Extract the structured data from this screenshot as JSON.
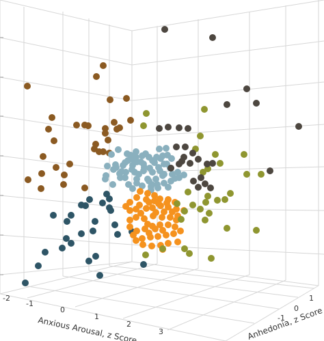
{
  "chart_data": {
    "type": "scatter",
    "title": "",
    "xlabel": "Anxious Arousal, z Score",
    "ylabel": "Anhedonia, z Score",
    "x_ticks": [
      "-2",
      "-1",
      "0",
      "1",
      "2",
      "3"
    ],
    "y_ticks": [
      "1",
      "0",
      "-1"
    ],
    "colors": {
      "brown": "#8b5a22",
      "teal": "#2e5566",
      "lightblue": "#8ab0be",
      "orange": "#f5921e",
      "olive": "#8f9630",
      "darkgray": "#4d4740"
    },
    "series": [
      {
        "color": "brown",
        "points": [
          [
            40,
            126
          ],
          [
            151,
            96
          ],
          [
            141,
            112
          ],
          [
            161,
            146
          ],
          [
            185,
            144
          ],
          [
            76,
            172
          ],
          [
            71,
            189
          ],
          [
            112,
            183
          ],
          [
            129,
            184
          ],
          [
            124,
            183
          ],
          [
            167,
            179
          ],
          [
            191,
            176
          ],
          [
            154,
            188
          ],
          [
            171,
            189
          ],
          [
            175,
            187
          ],
          [
            154,
            195
          ],
          [
            158,
            205
          ],
          [
            140,
            211
          ],
          [
            79,
            206
          ],
          [
            138,
            218
          ],
          [
            145,
            222
          ],
          [
            151,
            222
          ],
          [
            160,
            224
          ],
          [
            102,
            240
          ],
          [
            63,
            229
          ],
          [
            82,
            245
          ],
          [
            61,
            254
          ],
          [
            94,
            256
          ],
          [
            41,
            263
          ],
          [
            93,
            270
          ],
          [
            124,
            275
          ],
          [
            60,
            276
          ]
        ]
      },
      {
        "color": "teal",
        "points": [
          [
            150,
            297
          ],
          [
            156,
            284
          ],
          [
            160,
            291
          ],
          [
            131,
            292
          ],
          [
            125,
            301
          ],
          [
            119,
            300
          ],
          [
            78,
            315
          ],
          [
            104,
            315
          ],
          [
            98,
            324
          ],
          [
            119,
            342
          ],
          [
            139,
            324
          ],
          [
            136,
            338
          ],
          [
            172,
            343
          ],
          [
            168,
            329
          ],
          [
            162,
            308
          ],
          [
            160,
            304
          ],
          [
            97,
            349
          ],
          [
            56,
            389
          ],
          [
            104,
            356
          ],
          [
            91,
            363
          ],
          [
            193,
            339
          ],
          [
            140,
            375
          ],
          [
            130,
            382
          ],
          [
            66,
            369
          ],
          [
            146,
            403
          ],
          [
            37,
            414
          ],
          [
            210,
            387
          ]
        ]
      },
      {
        "color": "lightblue",
        "points": [
          [
            173,
            219
          ],
          [
            186,
            225
          ],
          [
            191,
            227
          ],
          [
            196,
            235
          ],
          [
            169,
            241
          ],
          [
            157,
            243
          ],
          [
            180,
            242
          ],
          [
            194,
            242
          ],
          [
            210,
            240
          ],
          [
            223,
            235
          ],
          [
            229,
            230
          ],
          [
            238,
            228
          ],
          [
            245,
            227
          ],
          [
            240,
            240
          ],
          [
            232,
            245
          ],
          [
            219,
            246
          ],
          [
            210,
            250
          ],
          [
            197,
            252
          ],
          [
            184,
            252
          ],
          [
            175,
            254
          ],
          [
            166,
            248
          ],
          [
            170,
            245
          ],
          [
            183,
            260
          ],
          [
            200,
            262
          ],
          [
            216,
            262
          ],
          [
            228,
            262
          ],
          [
            240,
            268
          ],
          [
            222,
            270
          ],
          [
            208,
            272
          ],
          [
            200,
            268
          ],
          [
            194,
            276
          ],
          [
            221,
            278
          ],
          [
            231,
            275
          ],
          [
            252,
            255
          ],
          [
            260,
            252
          ],
          [
            269,
            256
          ],
          [
            250,
            265
          ],
          [
            226,
            238
          ],
          [
            208,
            228
          ],
          [
            199,
            222
          ],
          [
            187,
            235
          ],
          [
            178,
            251
          ],
          [
            165,
            270
          ],
          [
            154,
            262
          ],
          [
            193,
            229
          ],
          [
            200,
            237
          ],
          [
            211,
            245
          ],
          [
            223,
            252
          ],
          [
            234,
            250
          ],
          [
            240,
            255
          ],
          [
            256,
            261
          ],
          [
            218,
            265
          ],
          [
            246,
            274
          ],
          [
            230,
            270
          ],
          [
            206,
            237
          ],
          [
            199,
            230
          ],
          [
            176,
            260
          ],
          [
            188,
            270
          ],
          [
            218,
            230
          ],
          [
            213,
            225
          ],
          [
            235,
            232
          ],
          [
            249,
            246
          ],
          [
            244,
            240
          ],
          [
            238,
            257
          ],
          [
            221,
            273
          ],
          [
            203,
            255
          ],
          [
            193,
            248
          ],
          [
            183,
            238
          ],
          [
            163,
            226
          ],
          [
            155,
            257
          ],
          [
            243,
            217
          ],
          [
            233,
            218
          ],
          [
            251,
            232
          ],
          [
            262,
            260
          ]
        ]
      },
      {
        "color": "orange",
        "points": [
          [
            205,
            280
          ],
          [
            216,
            283
          ],
          [
            226,
            286
          ],
          [
            234,
            291
          ],
          [
            246,
            292
          ],
          [
            256,
            296
          ],
          [
            226,
            294
          ],
          [
            214,
            292
          ],
          [
            200,
            289
          ],
          [
            190,
            296
          ],
          [
            184,
            302
          ],
          [
            190,
            308
          ],
          [
            199,
            306
          ],
          [
            206,
            312
          ],
          [
            214,
            305
          ],
          [
            223,
            304
          ],
          [
            235,
            301
          ],
          [
            246,
            303
          ],
          [
            258,
            306
          ],
          [
            269,
            308
          ],
          [
            260,
            316
          ],
          [
            249,
            318
          ],
          [
            237,
            318
          ],
          [
            224,
            316
          ],
          [
            211,
            320
          ],
          [
            199,
            318
          ],
          [
            190,
            322
          ],
          [
            190,
            332
          ],
          [
            200,
            338
          ],
          [
            212,
            335
          ],
          [
            223,
            331
          ],
          [
            234,
            329
          ],
          [
            246,
            329
          ],
          [
            256,
            332
          ],
          [
            264,
            338
          ],
          [
            254,
            342
          ],
          [
            243,
            344
          ],
          [
            231,
            346
          ],
          [
            220,
            347
          ],
          [
            208,
            349
          ],
          [
            199,
            352
          ],
          [
            209,
            358
          ],
          [
            222,
            360
          ],
          [
            235,
            359
          ],
          [
            246,
            356
          ],
          [
            260,
            354
          ],
          [
            238,
            365
          ],
          [
            216,
            328
          ],
          [
            228,
            311
          ],
          [
            240,
            310
          ],
          [
            252,
            310
          ],
          [
            204,
            300
          ],
          [
            218,
            296
          ],
          [
            232,
            298
          ],
          [
            244,
            297
          ],
          [
            258,
            322
          ],
          [
            218,
            341
          ],
          [
            227,
            335
          ],
          [
            238,
            337
          ],
          [
            195,
            344
          ]
        ]
      },
      {
        "color": "olive",
        "points": [
          [
            214,
            166
          ],
          [
            299,
            160
          ],
          [
            210,
            184
          ],
          [
            293,
            199
          ],
          [
            286,
            218
          ],
          [
            315,
            226
          ],
          [
            322,
            239
          ],
          [
            304,
            247
          ],
          [
            297,
            252
          ],
          [
            259,
            298
          ],
          [
            270,
            309
          ],
          [
            282,
            300
          ],
          [
            293,
            306
          ],
          [
            301,
            296
          ],
          [
            318,
            293
          ],
          [
            329,
            292
          ],
          [
            337,
            283
          ],
          [
            304,
            287
          ],
          [
            275,
            281
          ],
          [
            265,
            321
          ],
          [
            306,
            312
          ],
          [
            300,
            322
          ],
          [
            332,
            334
          ],
          [
            357,
            226
          ],
          [
            361,
            255
          ],
          [
            382,
            255
          ],
          [
            375,
            337
          ],
          [
            277,
            371
          ],
          [
            270,
            364
          ],
          [
            309,
            378
          ],
          [
            213,
            373
          ],
          [
            238,
            364
          ]
        ]
      },
      {
        "color": "darkgray",
        "points": [
          [
            241,
            43
          ],
          [
            311,
            55
          ],
          [
            361,
            130
          ],
          [
            332,
            153
          ],
          [
            375,
            151
          ],
          [
            437,
            185
          ],
          [
            395,
            250
          ],
          [
            233,
            188
          ],
          [
            246,
            186
          ],
          [
            262,
            187
          ],
          [
            275,
            188
          ],
          [
            271,
            215
          ],
          [
            269,
            230
          ],
          [
            282,
            224
          ],
          [
            258,
            215
          ],
          [
            278,
            239
          ],
          [
            290,
            233
          ],
          [
            303,
            240
          ],
          [
            311,
            239
          ],
          [
            294,
            260
          ],
          [
            308,
            275
          ],
          [
            290,
            274
          ],
          [
            283,
            265
          ],
          [
            300,
            269
          ],
          [
            266,
            236
          ],
          [
            250,
            246
          ],
          [
            262,
            240
          ]
        ]
      }
    ]
  }
}
